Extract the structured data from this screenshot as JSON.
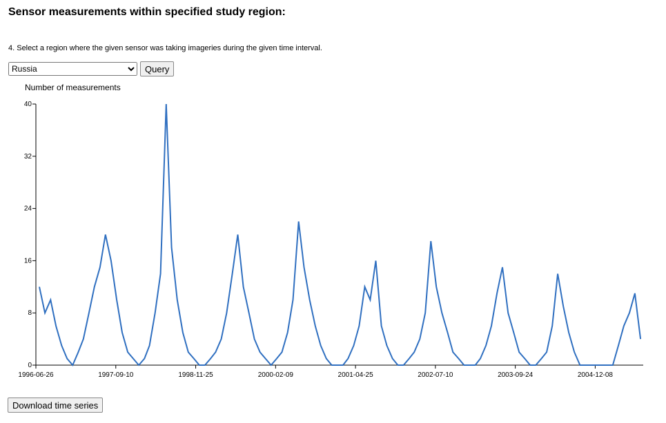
{
  "header": {
    "title": "Sensor measurements within specified study region:"
  },
  "form": {
    "instruction": "4. Select a region where the given sensor was taking imageries during the given time interval.",
    "region": "Russia",
    "query_button": "Query"
  },
  "chart_data": {
    "type": "line",
    "y_label": "Number of measurements",
    "color": "#2f6fc0",
    "x": [
      "1996-07-15",
      "1996-08-15",
      "1996-09-15",
      "1996-10-15",
      "1996-11-15",
      "1996-12-15",
      "1997-01-15",
      "1997-02-15",
      "1997-03-15",
      "1997-04-15",
      "1997-05-15",
      "1997-06-15",
      "1997-07-15",
      "1997-08-15",
      "1997-09-15",
      "1997-10-15",
      "1997-11-15",
      "1997-12-15",
      "1998-01-15",
      "1998-02-15",
      "1998-03-15",
      "1998-04-15",
      "1998-05-15",
      "1998-06-15",
      "1998-07-15",
      "1998-08-15",
      "1998-09-15",
      "1998-10-15",
      "1998-11-15",
      "1998-12-15",
      "1999-01-15",
      "1999-02-15",
      "1999-03-15",
      "1999-04-15",
      "1999-05-15",
      "1999-06-15",
      "1999-07-15",
      "1999-08-15",
      "1999-09-15",
      "1999-10-15",
      "1999-11-15",
      "1999-12-15",
      "2000-01-15",
      "2000-02-15",
      "2000-03-15",
      "2000-04-15",
      "2000-05-15",
      "2000-06-15",
      "2000-07-15",
      "2000-08-15",
      "2000-09-15",
      "2000-10-15",
      "2000-11-15",
      "2000-12-15",
      "2001-01-15",
      "2001-02-15",
      "2001-03-15",
      "2001-04-15",
      "2001-05-15",
      "2001-06-15",
      "2001-07-15",
      "2001-08-15",
      "2001-09-15",
      "2001-10-15",
      "2001-11-15",
      "2001-12-15",
      "2002-01-15",
      "2002-02-15",
      "2002-03-15",
      "2002-04-15",
      "2002-05-15",
      "2002-06-15",
      "2002-07-15",
      "2002-08-15",
      "2002-09-15",
      "2002-10-15",
      "2002-11-15",
      "2002-12-15",
      "2003-01-15",
      "2003-02-15",
      "2003-03-15",
      "2003-04-15",
      "2003-05-15",
      "2003-06-15",
      "2003-07-15",
      "2003-08-15",
      "2003-09-15",
      "2003-10-15",
      "2003-11-15",
      "2003-12-15",
      "2004-01-15",
      "2004-02-15",
      "2004-03-15",
      "2004-04-15",
      "2004-05-15",
      "2004-06-15",
      "2004-07-15",
      "2004-08-15",
      "2004-09-15",
      "2004-10-15",
      "2004-11-15",
      "2004-12-15",
      "2005-01-15",
      "2005-02-15",
      "2005-03-15",
      "2005-04-15",
      "2005-05-15",
      "2005-06-15",
      "2005-07-15",
      "2005-08-15"
    ],
    "values": [
      12,
      8,
      10,
      6,
      3,
      1,
      0,
      2,
      4,
      8,
      12,
      15,
      20,
      16,
      10,
      5,
      2,
      1,
      0,
      1,
      3,
      8,
      14,
      40,
      18,
      10,
      5,
      2,
      1,
      0,
      0,
      1,
      2,
      4,
      8,
      14,
      20,
      12,
      8,
      4,
      2,
      1,
      0,
      1,
      2,
      5,
      10,
      22,
      15,
      10,
      6,
      3,
      1,
      0,
      0,
      0,
      1,
      3,
      6,
      12,
      10,
      16,
      6,
      3,
      1,
      0,
      0,
      1,
      2,
      4,
      8,
      19,
      12,
      8,
      5,
      2,
      1,
      0,
      0,
      0,
      1,
      3,
      6,
      11,
      15,
      8,
      5,
      2,
      1,
      0,
      0,
      1,
      2,
      6,
      14,
      9,
      5,
      2,
      0,
      0,
      0,
      0,
      0,
      0,
      0,
      3,
      6,
      8,
      11,
      4
    ],
    "xlim": [
      "1996-06-26",
      "2005-08-30"
    ],
    "xticks": [
      "1996-06-26",
      "1997-09-10",
      "1998-11-25",
      "2000-02-09",
      "2001-04-25",
      "2002-07-10",
      "2003-09-24",
      "2004-12-08"
    ],
    "ylim": [
      0,
      40
    ],
    "yticks": [
      0,
      8,
      16,
      24,
      32,
      40
    ]
  },
  "download_button": "Download time series"
}
